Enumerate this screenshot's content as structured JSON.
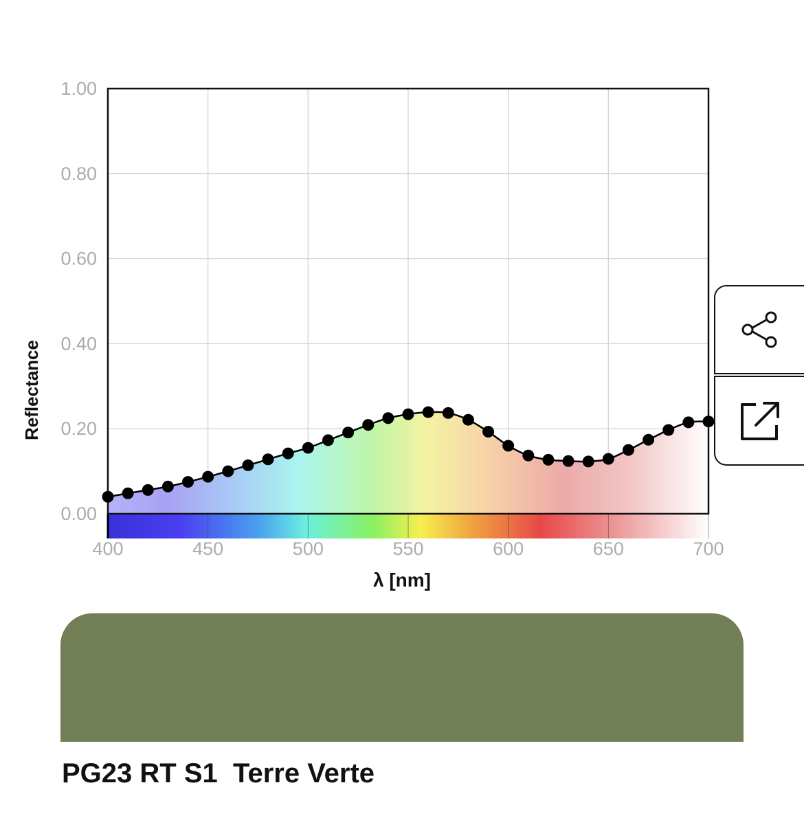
{
  "chart_data": {
    "type": "line",
    "xlabel": "λ [nm]",
    "ylabel": "Reflectance",
    "xlim": [
      400,
      700
    ],
    "ylim": [
      0,
      1
    ],
    "x_ticks": [
      "400",
      "450",
      "500",
      "550",
      "600",
      "650",
      "700"
    ],
    "y_ticks": [
      "0.00",
      "0.20",
      "0.40",
      "0.60",
      "0.80",
      "1.00"
    ],
    "grid": true,
    "x": [
      400,
      410,
      420,
      430,
      440,
      450,
      460,
      470,
      480,
      490,
      500,
      510,
      520,
      530,
      540,
      550,
      560,
      570,
      580,
      590,
      600,
      610,
      620,
      630,
      640,
      650,
      660,
      670,
      680,
      690,
      700
    ],
    "y": [
      0.04,
      0.048,
      0.056,
      0.064,
      0.075,
      0.087,
      0.1,
      0.114,
      0.128,
      0.142,
      0.155,
      0.173,
      0.191,
      0.209,
      0.225,
      0.234,
      0.239,
      0.237,
      0.221,
      0.193,
      0.16,
      0.137,
      0.127,
      0.124,
      0.123,
      0.129,
      0.15,
      0.174,
      0.197,
      0.215,
      0.217
    ],
    "marker": "filled-circle",
    "line_color": "#000000",
    "area_fill": "visible-spectrum gradient"
  },
  "swatch": {
    "color": "#727f56"
  },
  "color_name": "PG23 RT S1  Terre Verte",
  "share_button": {
    "icon": "share-icon"
  },
  "open_button": {
    "icon": "external-link-icon"
  }
}
